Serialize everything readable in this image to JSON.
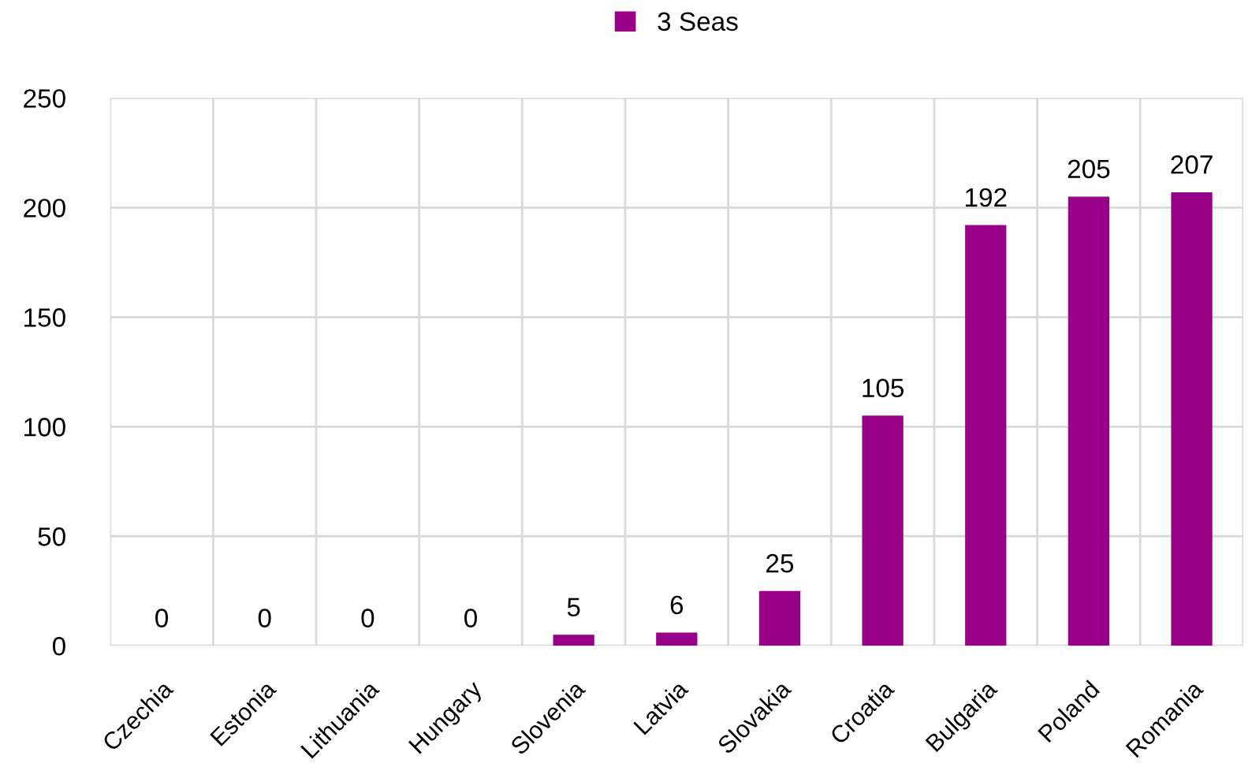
{
  "chart_data": {
    "type": "bar",
    "categories": [
      "Czechia",
      "Estonia",
      "Lithuania",
      "Hungary",
      "Slovenia",
      "Latvia",
      "Slovakia",
      "Croatia",
      "Bulgaria",
      "Poland",
      "Romania"
    ],
    "series": [
      {
        "name": "3 Seas",
        "color": "#990088",
        "values": [
          0,
          0,
          0,
          0,
          5,
          6,
          25,
          105,
          192,
          205,
          207
        ]
      }
    ],
    "ylim": [
      0,
      250
    ],
    "yticks": [
      0,
      50,
      100,
      150,
      200,
      250
    ],
    "grid": true,
    "legend": "top",
    "data_labels": true
  }
}
